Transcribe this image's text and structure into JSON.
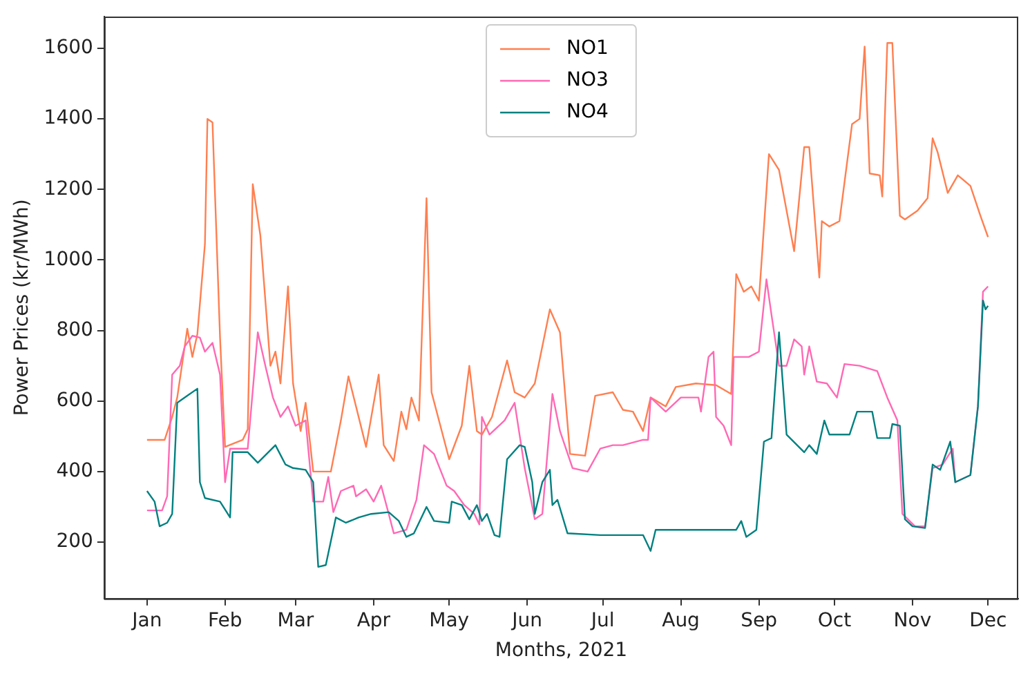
{
  "chart_data": {
    "type": "line",
    "xlabel": "Months, 2021",
    "ylabel": "Power Prices (kr/MWh)",
    "xlim": [
      "2020-12-15",
      "2021-12-13"
    ],
    "xticks": [
      {
        "value": "2021-01-01",
        "label": "Jan"
      },
      {
        "value": "2021-02-01",
        "label": "Feb"
      },
      {
        "value": "2021-03-01",
        "label": "Mar"
      },
      {
        "value": "2021-04-01",
        "label": "Apr"
      },
      {
        "value": "2021-05-01",
        "label": "May"
      },
      {
        "value": "2021-06-01",
        "label": "Jun"
      },
      {
        "value": "2021-07-01",
        "label": "Jul"
      },
      {
        "value": "2021-08-01",
        "label": "Aug"
      },
      {
        "value": "2021-09-01",
        "label": "Sep"
      },
      {
        "value": "2021-10-01",
        "label": "Oct"
      },
      {
        "value": "2021-11-01",
        "label": "Nov"
      },
      {
        "value": "2021-12-01",
        "label": "Dec"
      }
    ],
    "ylim": [
      40,
      1690
    ],
    "yticks": [
      200,
      400,
      600,
      800,
      1000,
      1200,
      1400,
      1600
    ],
    "grid": false,
    "legend": "top",
    "marker": "none",
    "line_style": "solid",
    "series": [
      {
        "name": "NO1",
        "color": "#ff7f50",
        "x": [
          "2021-01-01",
          "2021-01-08",
          "2021-01-11",
          "2021-01-13",
          "2021-01-17",
          "2021-01-19",
          "2021-01-21",
          "2021-01-24",
          "2021-01-25",
          "2021-01-27",
          "2021-01-30",
          "2021-02-01",
          "2021-02-08",
          "2021-02-10",
          "2021-02-12",
          "2021-02-15",
          "2021-02-19",
          "2021-02-21",
          "2021-02-23",
          "2021-02-26",
          "2021-02-28",
          "2021-03-03",
          "2021-03-05",
          "2021-03-08",
          "2021-03-15",
          "2021-03-19",
          "2021-03-22",
          "2021-03-25",
          "2021-03-29",
          "2021-04-03",
          "2021-04-05",
          "2021-04-09",
          "2021-04-12",
          "2021-04-14",
          "2021-04-16",
          "2021-04-19",
          "2021-04-22",
          "2021-04-24",
          "2021-05-01",
          "2021-05-06",
          "2021-05-09",
          "2021-05-12",
          "2021-05-14",
          "2021-05-18",
          "2021-05-24",
          "2021-05-27",
          "2021-05-31",
          "2021-06-04",
          "2021-06-10",
          "2021-06-14",
          "2021-06-18",
          "2021-06-24",
          "2021-06-28",
          "2021-07-05",
          "2021-07-09",
          "2021-07-13",
          "2021-07-17",
          "2021-07-20",
          "2021-07-26",
          "2021-07-30",
          "2021-08-07",
          "2021-08-15",
          "2021-08-21",
          "2021-08-23",
          "2021-08-26",
          "2021-08-29",
          "2021-09-01",
          "2021-09-05",
          "2021-09-09",
          "2021-09-15",
          "2021-09-19",
          "2021-09-21",
          "2021-09-25",
          "2021-09-26",
          "2021-09-29",
          "2021-10-03",
          "2021-10-08",
          "2021-10-11",
          "2021-10-13",
          "2021-10-15",
          "2021-10-19",
          "2021-10-20",
          "2021-10-22",
          "2021-10-24",
          "2021-10-27",
          "2021-10-29",
          "2021-11-03",
          "2021-11-07",
          "2021-11-09",
          "2021-11-11",
          "2021-11-15",
          "2021-11-19",
          "2021-11-24",
          "2021-11-28",
          "2021-12-01"
        ],
        "values": [
          490,
          490,
          555,
          610,
          805,
          725,
          790,
          1045,
          1400,
          1390,
          780,
          470,
          490,
          520,
          1215,
          1070,
          700,
          740,
          650,
          925,
          650,
          515,
          595,
          400,
          400,
          545,
          670,
          585,
          470,
          675,
          475,
          430,
          570,
          520,
          610,
          545,
          1175,
          625,
          435,
          530,
          700,
          515,
          505,
          555,
          715,
          625,
          610,
          650,
          860,
          795,
          450,
          445,
          615,
          625,
          575,
          570,
          515,
          610,
          585,
          640,
          650,
          645,
          620,
          960,
          910,
          925,
          885,
          1300,
          1255,
          1025,
          1320,
          1320,
          950,
          1110,
          1095,
          1110,
          1385,
          1400,
          1605,
          1245,
          1240,
          1180,
          1615,
          1615,
          1125,
          1115,
          1140,
          1175,
          1345,
          1305,
          1190,
          1240,
          1210,
          1125,
          1065
        ]
      },
      {
        "name": "NO3",
        "color": "#ff69b4",
        "x": [
          "2021-01-01",
          "2021-01-07",
          "2021-01-09",
          "2021-01-11",
          "2021-01-14",
          "2021-01-16",
          "2021-01-19",
          "2021-01-22",
          "2021-01-24",
          "2021-01-27",
          "2021-01-30",
          "2021-02-01",
          "2021-02-03",
          "2021-02-10",
          "2021-02-14",
          "2021-02-17",
          "2021-02-20",
          "2021-02-23",
          "2021-02-26",
          "2021-03-01",
          "2021-03-05",
          "2021-03-08",
          "2021-03-12",
          "2021-03-14",
          "2021-03-16",
          "2021-03-19",
          "2021-03-24",
          "2021-03-25",
          "2021-03-29",
          "2021-04-01",
          "2021-04-04",
          "2021-04-07",
          "2021-04-09",
          "2021-04-14",
          "2021-04-18",
          "2021-04-21",
          "2021-04-25",
          "2021-04-30",
          "2021-05-03",
          "2021-05-07",
          "2021-05-11",
          "2021-05-13",
          "2021-05-14",
          "2021-05-17",
          "2021-05-23",
          "2021-05-27",
          "2021-05-31",
          "2021-06-04",
          "2021-06-07",
          "2021-06-11",
          "2021-06-14",
          "2021-06-19",
          "2021-06-25",
          "2021-06-30",
          "2021-07-05",
          "2021-07-09",
          "2021-07-17",
          "2021-07-19",
          "2021-07-20",
          "2021-07-26",
          "2021-08-01",
          "2021-08-08",
          "2021-08-09",
          "2021-08-12",
          "2021-08-14",
          "2021-08-15",
          "2021-08-18",
          "2021-08-21",
          "2021-08-22",
          "2021-08-28",
          "2021-09-01",
          "2021-09-04",
          "2021-09-06",
          "2021-09-09",
          "2021-09-12",
          "2021-09-15",
          "2021-09-18",
          "2021-09-19",
          "2021-09-21",
          "2021-09-24",
          "2021-09-28",
          "2021-10-02",
          "2021-10-05",
          "2021-10-11",
          "2021-10-18",
          "2021-10-22",
          "2021-10-26",
          "2021-10-28",
          "2021-11-02",
          "2021-11-06",
          "2021-11-09",
          "2021-11-13",
          "2021-11-17",
          "2021-11-18",
          "2021-11-24",
          "2021-11-27",
          "2021-11-29",
          "2021-12-01"
        ],
        "values": [
          290,
          290,
          330,
          675,
          700,
          755,
          785,
          780,
          740,
          765,
          675,
          370,
          465,
          465,
          795,
          700,
          610,
          555,
          585,
          530,
          545,
          315,
          315,
          385,
          285,
          345,
          360,
          330,
          350,
          315,
          360,
          280,
          225,
          235,
          320,
          475,
          450,
          360,
          345,
          305,
          280,
          250,
          555,
          505,
          545,
          595,
          410,
          265,
          280,
          620,
          515,
          410,
          400,
          465,
          475,
          475,
          490,
          490,
          610,
          570,
          610,
          610,
          570,
          725,
          740,
          555,
          530,
          475,
          725,
          725,
          740,
          945,
          845,
          700,
          700,
          775,
          755,
          675,
          755,
          655,
          650,
          610,
          705,
          700,
          685,
          610,
          545,
          280,
          245,
          245,
          410,
          420,
          465,
          370,
          390,
          585,
          910,
          925
        ]
      },
      {
        "name": "NO4",
        "color": "#008080",
        "x": [
          "2021-01-01",
          "2021-01-04",
          "2021-01-06",
          "2021-01-09",
          "2021-01-11",
          "2021-01-13",
          "2021-01-17",
          "2021-01-21",
          "2021-01-22",
          "2021-01-24",
          "2021-01-30",
          "2021-02-03",
          "2021-02-04",
          "2021-02-10",
          "2021-02-14",
          "2021-02-21",
          "2021-02-25",
          "2021-02-28",
          "2021-03-05",
          "2021-03-08",
          "2021-03-10",
          "2021-03-13",
          "2021-03-17",
          "2021-03-21",
          "2021-03-26",
          "2021-03-31",
          "2021-04-07",
          "2021-04-11",
          "2021-04-14",
          "2021-04-17",
          "2021-04-19",
          "2021-04-22",
          "2021-04-25",
          "2021-05-01",
          "2021-05-02",
          "2021-05-06",
          "2021-05-09",
          "2021-05-12",
          "2021-05-14",
          "2021-05-16",
          "2021-05-19",
          "2021-05-21",
          "2021-05-24",
          "2021-05-29",
          "2021-05-31",
          "2021-06-03",
          "2021-06-04",
          "2021-06-07",
          "2021-06-10",
          "2021-06-11",
          "2021-06-13",
          "2021-06-17",
          "2021-06-30",
          "2021-07-17",
          "2021-07-20",
          "2021-07-22",
          "2021-08-23",
          "2021-08-25",
          "2021-08-27",
          "2021-08-31",
          "2021-09-03",
          "2021-09-06",
          "2021-09-09",
          "2021-09-12",
          "2021-09-19",
          "2021-09-21",
          "2021-09-24",
          "2021-09-27",
          "2021-09-29",
          "2021-10-07",
          "2021-10-10",
          "2021-10-16",
          "2021-10-18",
          "2021-10-23",
          "2021-10-24",
          "2021-10-27",
          "2021-10-29",
          "2021-11-01",
          "2021-11-06",
          "2021-11-09",
          "2021-11-12",
          "2021-11-16",
          "2021-11-18",
          "2021-11-24",
          "2021-11-27",
          "2021-11-29",
          "2021-11-30",
          "2021-12-01"
        ],
        "values": [
          345,
          315,
          245,
          255,
          280,
          595,
          615,
          635,
          370,
          325,
          315,
          270,
          455,
          455,
          425,
          475,
          420,
          410,
          405,
          370,
          130,
          135,
          270,
          255,
          270,
          280,
          285,
          260,
          215,
          225,
          255,
          300,
          260,
          255,
          315,
          305,
          265,
          305,
          260,
          280,
          220,
          215,
          435,
          475,
          470,
          370,
          280,
          370,
          405,
          305,
          320,
          225,
          220,
          220,
          175,
          235,
          235,
          260,
          215,
          235,
          485,
          495,
          795,
          505,
          455,
          475,
          450,
          545,
          505,
          505,
          570,
          570,
          495,
          495,
          535,
          530,
          265,
          245,
          240,
          420,
          405,
          485,
          370,
          390,
          585,
          885,
          860,
          870
        ]
      }
    ]
  }
}
